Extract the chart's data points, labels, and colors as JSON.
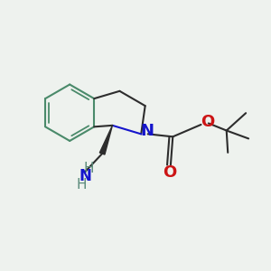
{
  "bg_color": "#eef2ee",
  "bond_color": "#2d2d2d",
  "aromatic_color": "#4a8a6a",
  "n_color": "#1515cc",
  "o_color": "#cc1515",
  "gray_color": "#5a8a7a",
  "line_width": 1.5,
  "aromatic_lw": 1.3,
  "font_size": 11,
  "figsize": [
    3.0,
    3.0
  ],
  "dpi": 100,
  "xlim": [
    0,
    10
  ],
  "ylim": [
    0,
    10
  ]
}
